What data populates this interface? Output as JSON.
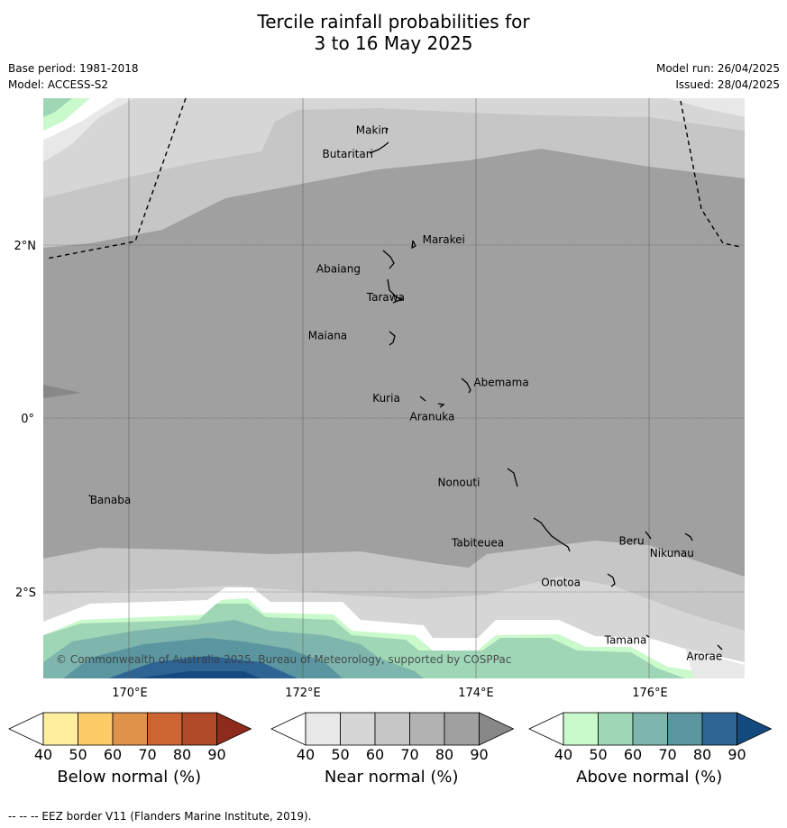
{
  "header": {
    "title_line1": "Tercile rainfall probabilities for",
    "title_line2": "3 to 16 May 2025",
    "base_period": "Base period: 1981-2018",
    "model": "Model: ACCESS-S2",
    "model_run": "Model run: 26/04/2025",
    "issued": "Issued: 28/04/2025"
  },
  "map": {
    "lat_labels": [
      "2°N",
      "0°",
      "2°S"
    ],
    "lon_labels": [
      "170°E",
      "172°E",
      "174°E",
      "176°E"
    ],
    "copyright": "© Commonwealth of Australia 2025, Bureau of Meteorology, supported by COSPPac",
    "places": [
      {
        "name": "Makin",
        "lon": 173.0,
        "lat": 3.35
      },
      {
        "name": "Butaritari",
        "lon": 172.8,
        "lat": 3.1
      },
      {
        "name": "Marakei",
        "lon": 173.3,
        "lat": 2.0
      },
      {
        "name": "Abaiang",
        "lon": 172.95,
        "lat": 1.8
      },
      {
        "name": "Tarawa",
        "lon": 173.0,
        "lat": 1.4
      },
      {
        "name": "Maiana",
        "lon": 173.0,
        "lat": 0.95
      },
      {
        "name": "Abemama",
        "lon": 173.9,
        "lat": 0.4
      },
      {
        "name": "Kuria",
        "lon": 173.4,
        "lat": 0.22
      },
      {
        "name": "Aranuka",
        "lon": 173.6,
        "lat": 0.15
      },
      {
        "name": "Nonouti",
        "lon": 174.4,
        "lat": -0.65
      },
      {
        "name": "Banaba",
        "lon": 169.55,
        "lat": -0.87
      },
      {
        "name": "Tabiteuea",
        "lon": 174.8,
        "lat": -1.35
      },
      {
        "name": "Beru",
        "lon": 176.0,
        "lat": -1.35
      },
      {
        "name": "Nikunau",
        "lon": 176.45,
        "lat": -1.37
      },
      {
        "name": "Onotoa",
        "lon": 175.55,
        "lat": -1.8
      },
      {
        "name": "Tamana",
        "lon": 175.98,
        "lat": -2.5
      },
      {
        "name": "Arorae",
        "lon": 176.82,
        "lat": -2.65
      }
    ]
  },
  "colorbars": [
    {
      "title": "Below normal (%)",
      "ticks": [
        "40",
        "50",
        "60",
        "70",
        "80",
        "90"
      ],
      "colors": [
        "#ffffff",
        "#ffeea0",
        "#fdcc66",
        "#e0924a",
        "#cc6434",
        "#b04a28",
        "#8e2b1c"
      ]
    },
    {
      "title": "Near normal (%)",
      "ticks": [
        "40",
        "50",
        "60",
        "70",
        "80",
        "90"
      ],
      "colors": [
        "#ffffff",
        "#e8e8e8",
        "#d6d6d6",
        "#c6c6c6",
        "#b2b2b2",
        "#a0a0a0",
        "#888888"
      ]
    },
    {
      "title": "Above normal (%)",
      "ticks": [
        "40",
        "50",
        "60",
        "70",
        "80",
        "90"
      ],
      "colors": [
        "#ffffff",
        "#caf9cc",
        "#9fd6b6",
        "#7eb5ad",
        "#5a95a0",
        "#2e6494",
        "#144a80"
      ]
    }
  ],
  "footnote": "--  --  -- EEZ border V11 (Flanders Marine Institute, 2019)."
}
